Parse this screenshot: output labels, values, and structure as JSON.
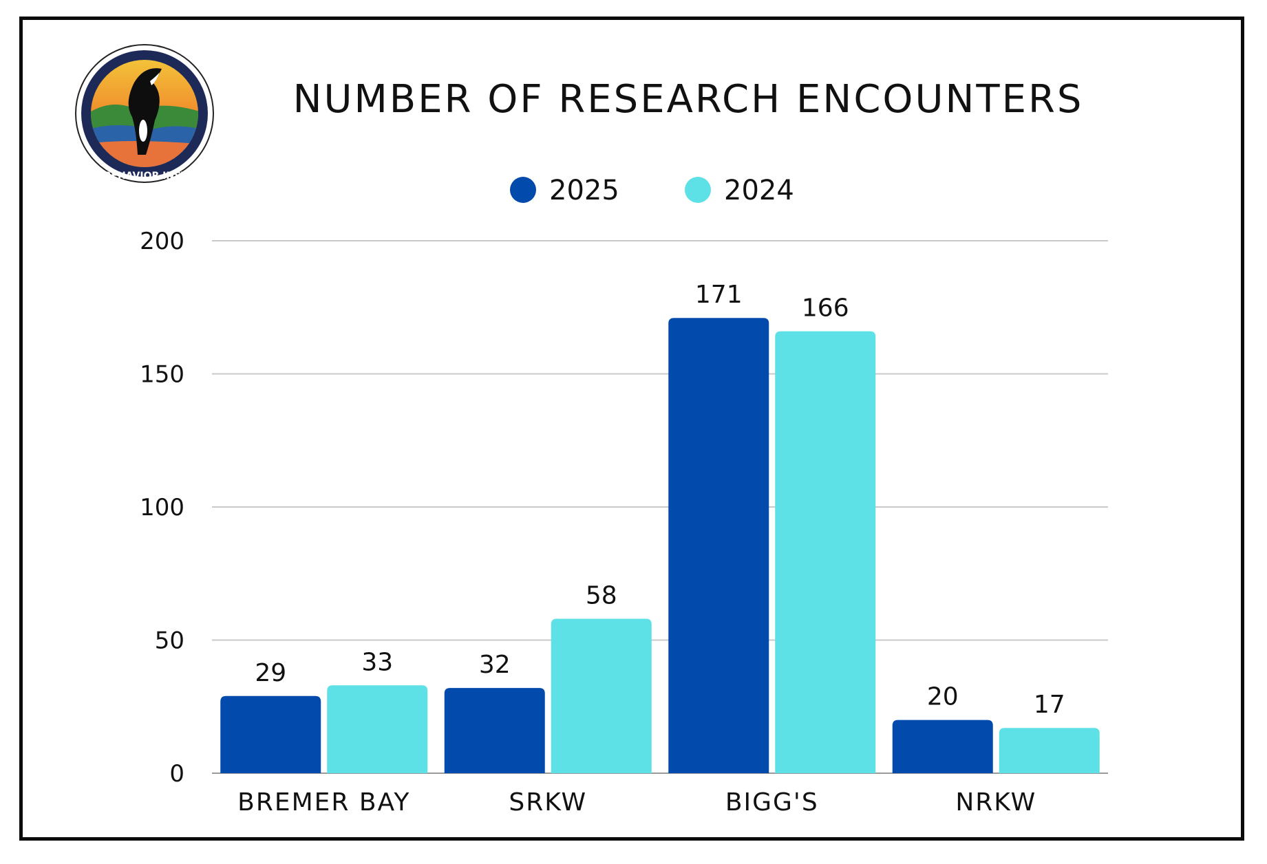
{
  "logo": {
    "text": "ORCA BEHAVIOR INSTITUTE",
    "icon": "orca-breach-logo"
  },
  "chart_data": {
    "type": "bar",
    "title": "NUMBER OF RESEARCH ENCOUNTERS",
    "categories": [
      "BREMER BAY",
      "SRKW",
      "BIGG'S",
      "NRKW"
    ],
    "series": [
      {
        "name": "2025",
        "color": "#034aad",
        "values": [
          29,
          32,
          171,
          20
        ]
      },
      {
        "name": "2024",
        "color": "#5ee1e6",
        "values": [
          33,
          58,
          166,
          17
        ]
      }
    ],
    "yticks": [
      0,
      50,
      100,
      150,
      200
    ],
    "ylim": [
      0,
      200
    ],
    "xlabel": "",
    "ylabel": "",
    "grid": true,
    "legend_position": "top-center"
  }
}
